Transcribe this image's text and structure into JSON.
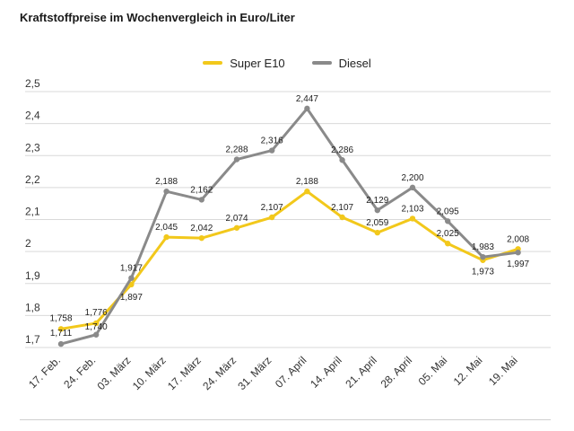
{
  "chart_data": {
    "type": "line",
    "title": "Kraftstoffpreise im Wochenvergleich in Euro/Liter",
    "categories": [
      "17. Feb.",
      "24. Feb.",
      "03. März",
      "10. März",
      "17. März",
      "24. März",
      "31. März",
      "07. April",
      "14. April",
      "21. April",
      "28. April",
      "05. Mai",
      "12. Mai",
      "19. Mai"
    ],
    "series": [
      {
        "name": "Super E10",
        "color": "#f2c81b",
        "values": [
          1.758,
          1.776,
          1.897,
          2.045,
          2.042,
          2.074,
          2.107,
          2.188,
          2.107,
          2.059,
          2.103,
          2.025,
          1.973,
          2.008
        ],
        "labels": [
          "1,758",
          "1,776",
          "1,897",
          "2,045",
          "2,042",
          "2,074",
          "2,107",
          "2,188",
          "2,107",
          "2,059",
          "2,103",
          "2,025",
          "1,973",
          "2,008"
        ]
      },
      {
        "name": "Diesel",
        "color": "#8a8a8a",
        "values": [
          1.711,
          1.74,
          1.917,
          2.188,
          2.162,
          2.288,
          2.316,
          2.447,
          2.286,
          2.129,
          2.2,
          2.095,
          1.983,
          1.997
        ],
        "labels": [
          "1,711",
          "1,740",
          "1,917",
          "2,188",
          "2,162",
          "2,288",
          "2,316",
          "2,447",
          "2,286",
          "2,129",
          "2,200",
          "2,095",
          "1,983",
          "1,997"
        ]
      }
    ],
    "yticks": [
      1.7,
      1.8,
      1.9,
      2.0,
      2.1,
      2.2,
      2.3,
      2.4,
      2.5
    ],
    "ytick_labels": [
      "1,7",
      "1,8",
      "1,9",
      "2",
      "2,1",
      "2,2",
      "2,3",
      "2,4",
      "2,5"
    ],
    "ylim": [
      1.7,
      2.5
    ],
    "grid": true,
    "legend_position": "top-center"
  }
}
